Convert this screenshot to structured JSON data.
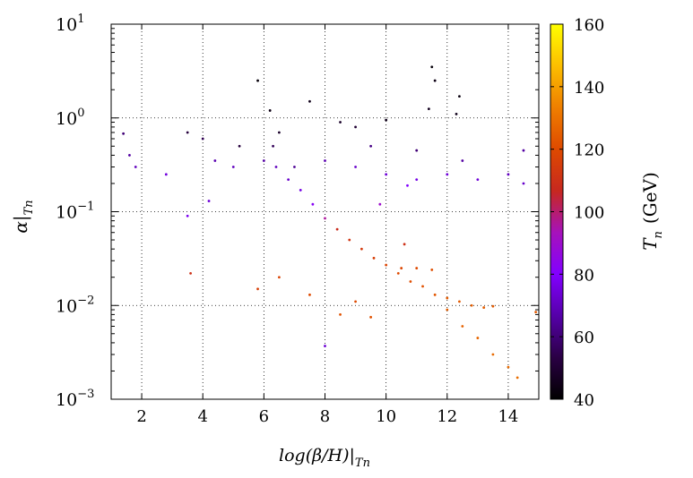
{
  "chart_data": {
    "type": "scatter",
    "title": "",
    "xlabel": "log(β/H)|",
    "xlabel_sub": "Tn",
    "ylabel": "α|",
    "ylabel_sub": "Tn",
    "x_range": [
      1,
      15
    ],
    "y_range": [
      0.001,
      10
    ],
    "y_scale": "log",
    "grid": true,
    "grid_style": "dotted",
    "x_ticks": [
      {
        "value": 2,
        "label": "2"
      },
      {
        "value": 4,
        "label": "4"
      },
      {
        "value": 6,
        "label": "6"
      },
      {
        "value": 8,
        "label": "8"
      },
      {
        "value": 10,
        "label": "10"
      },
      {
        "value": 12,
        "label": "12"
      },
      {
        "value": 14,
        "label": "14"
      }
    ],
    "y_ticks": [
      {
        "value": 0.001,
        "base": "10",
        "exp": "−3"
      },
      {
        "value": 0.01,
        "base": "10",
        "exp": "−2"
      },
      {
        "value": 0.1,
        "base": "10",
        "exp": "−1"
      },
      {
        "value": 1,
        "base": "10",
        "exp": "0"
      },
      {
        "value": 10,
        "base": "10",
        "exp": "1"
      }
    ],
    "colorbar": {
      "label": "T",
      "label_sub": "n",
      "label_unit": "(GeV)",
      "range": [
        40,
        160
      ],
      "ticks": [
        40,
        60,
        80,
        100,
        120,
        140,
        160
      ],
      "tick_labels": [
        "40",
        "60",
        "80",
        "100",
        "120",
        "140",
        "160"
      ],
      "colormap": [
        "#000000",
        "#2a0044",
        "#5500a8",
        "#8200ff",
        "#a612bb",
        "#c7281f",
        "#de4a00",
        "#ef7f00",
        "#fcbe00",
        "#ffff00"
      ]
    },
    "points_note": "Thousands of points; representative sample below as [x, alpha, Tn_GeV].",
    "points": [
      [
        5.8,
        2.5,
        42
      ],
      [
        6.2,
        1.2,
        44
      ],
      [
        7.5,
        1.5,
        45
      ],
      [
        11.5,
        3.5,
        42
      ],
      [
        11.6,
        2.5,
        44
      ],
      [
        12.4,
        1.7,
        43
      ],
      [
        12.3,
        1.1,
        45
      ],
      [
        11.4,
        1.25,
        46
      ],
      [
        10.0,
        0.95,
        45
      ],
      [
        8.5,
        0.9,
        48
      ],
      [
        9.0,
        0.8,
        50
      ],
      [
        6.5,
        0.7,
        48
      ],
      [
        5.2,
        0.5,
        52
      ],
      [
        4.0,
        0.6,
        55
      ],
      [
        3.5,
        0.7,
        52
      ],
      [
        1.4,
        0.68,
        60
      ],
      [
        1.6,
        0.4,
        66
      ],
      [
        1.8,
        0.3,
        70
      ],
      [
        2.8,
        0.25,
        75
      ],
      [
        3.5,
        0.09,
        78
      ],
      [
        3.6,
        0.022,
        110
      ],
      [
        4.2,
        0.13,
        74
      ],
      [
        4.4,
        0.35,
        68
      ],
      [
        5.0,
        0.3,
        70
      ],
      [
        6.0,
        0.35,
        66
      ],
      [
        6.4,
        0.3,
        70
      ],
      [
        6.8,
        0.22,
        72
      ],
      [
        7.2,
        0.17,
        76
      ],
      [
        7.6,
        0.12,
        82
      ],
      [
        8.0,
        0.085,
        96
      ],
      [
        8.4,
        0.065,
        108
      ],
      [
        8.8,
        0.05,
        112
      ],
      [
        9.2,
        0.04,
        114
      ],
      [
        9.6,
        0.032,
        116
      ],
      [
        10.0,
        0.027,
        118
      ],
      [
        10.4,
        0.022,
        120
      ],
      [
        10.8,
        0.018,
        121
      ],
      [
        11.2,
        0.016,
        122
      ],
      [
        11.6,
        0.013,
        123
      ],
      [
        12.0,
        0.012,
        124
      ],
      [
        12.4,
        0.011,
        124
      ],
      [
        12.8,
        0.01,
        125
      ],
      [
        13.2,
        0.0095,
        125
      ],
      [
        13.5,
        0.0098,
        124
      ],
      [
        10.5,
        0.025,
        119
      ],
      [
        11.0,
        0.025,
        120
      ],
      [
        11.5,
        0.024,
        121
      ],
      [
        10.6,
        0.045,
        110
      ],
      [
        12.0,
        0.009,
        125
      ],
      [
        12.5,
        0.006,
        126
      ],
      [
        13.0,
        0.0045,
        127
      ],
      [
        13.5,
        0.003,
        128
      ],
      [
        14.0,
        0.0022,
        128
      ],
      [
        14.3,
        0.0017,
        129
      ],
      [
        7.0,
        0.3,
        64
      ],
      [
        8.0,
        0.35,
        68
      ],
      [
        9.0,
        0.3,
        72
      ],
      [
        10.0,
        0.25,
        74
      ],
      [
        11.0,
        0.22,
        76
      ],
      [
        12.0,
        0.25,
        74
      ],
      [
        13.0,
        0.22,
        74
      ],
      [
        14.0,
        0.25,
        70
      ],
      [
        14.5,
        0.2,
        72
      ],
      [
        9.5,
        0.5,
        62
      ],
      [
        11.0,
        0.45,
        60
      ],
      [
        12.5,
        0.35,
        66
      ],
      [
        5.8,
        0.015,
        116
      ],
      [
        6.5,
        0.02,
        118
      ],
      [
        7.5,
        0.013,
        120
      ],
      [
        8.5,
        0.008,
        122
      ],
      [
        9.0,
        0.011,
        120
      ],
      [
        9.5,
        0.0075,
        122
      ],
      [
        8.0,
        0.0037,
        74
      ],
      [
        14.9,
        0.0085,
        124
      ],
      [
        14.5,
        0.45,
        66
      ],
      [
        6.3,
        0.5,
        56
      ],
      [
        10.7,
        0.19,
        80
      ],
      [
        9.8,
        0.12,
        90
      ]
    ]
  }
}
